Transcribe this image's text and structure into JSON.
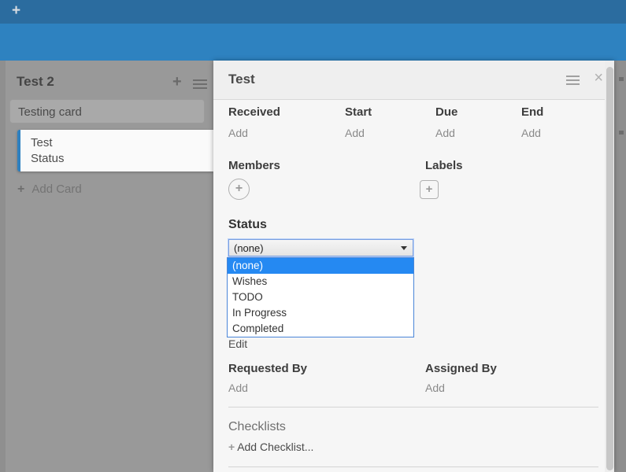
{
  "colors": {
    "topbar": "#2b6c9f",
    "band": "#2e82c0",
    "board_bg": "#8f8f8f",
    "list_bg": "#999999",
    "card_bg": "#a9a9a9",
    "selected_card_accent": "#2e80c0",
    "panel_header_bg": "#efefef",
    "panel_body_bg": "#f6f6f6",
    "select_focus_border": "#7a9fe0",
    "dropdown_border": "#4a86d8",
    "option_highlight_bg": "#2589f2"
  },
  "topbar": {
    "add_icon": "+"
  },
  "list": {
    "title": "Test 2",
    "add_icon": "+",
    "cards": [
      {
        "title": "Testing card"
      }
    ],
    "selected_card": {
      "title": "Test",
      "subtitle": "Status"
    },
    "add_card": {
      "icon": "+",
      "label": "Add Card"
    }
  },
  "panel": {
    "title": "Test",
    "close_icon": "×",
    "dates": [
      {
        "label": "Received",
        "action": "Add"
      },
      {
        "label": "Start",
        "action": "Add"
      },
      {
        "label": "Due",
        "action": "Add"
      },
      {
        "label": "End",
        "action": "Add"
      }
    ],
    "members": {
      "label": "Members",
      "add_icon": "+"
    },
    "labels": {
      "label": "Labels",
      "add_icon": "+"
    },
    "status": {
      "label": "Status",
      "selected": "(none)",
      "options": [
        "(none)",
        "Wishes",
        "TODO",
        "In Progress",
        "Completed"
      ],
      "highlighted": "(none)",
      "edit_label": "Edit"
    },
    "requested_by": {
      "label": "Requested By",
      "action": "Add"
    },
    "assigned_by": {
      "label": "Assigned By",
      "action": "Add"
    },
    "checklists": {
      "label": "Checklists",
      "add_icon": "+",
      "add_label": "Add Checklist..."
    }
  }
}
